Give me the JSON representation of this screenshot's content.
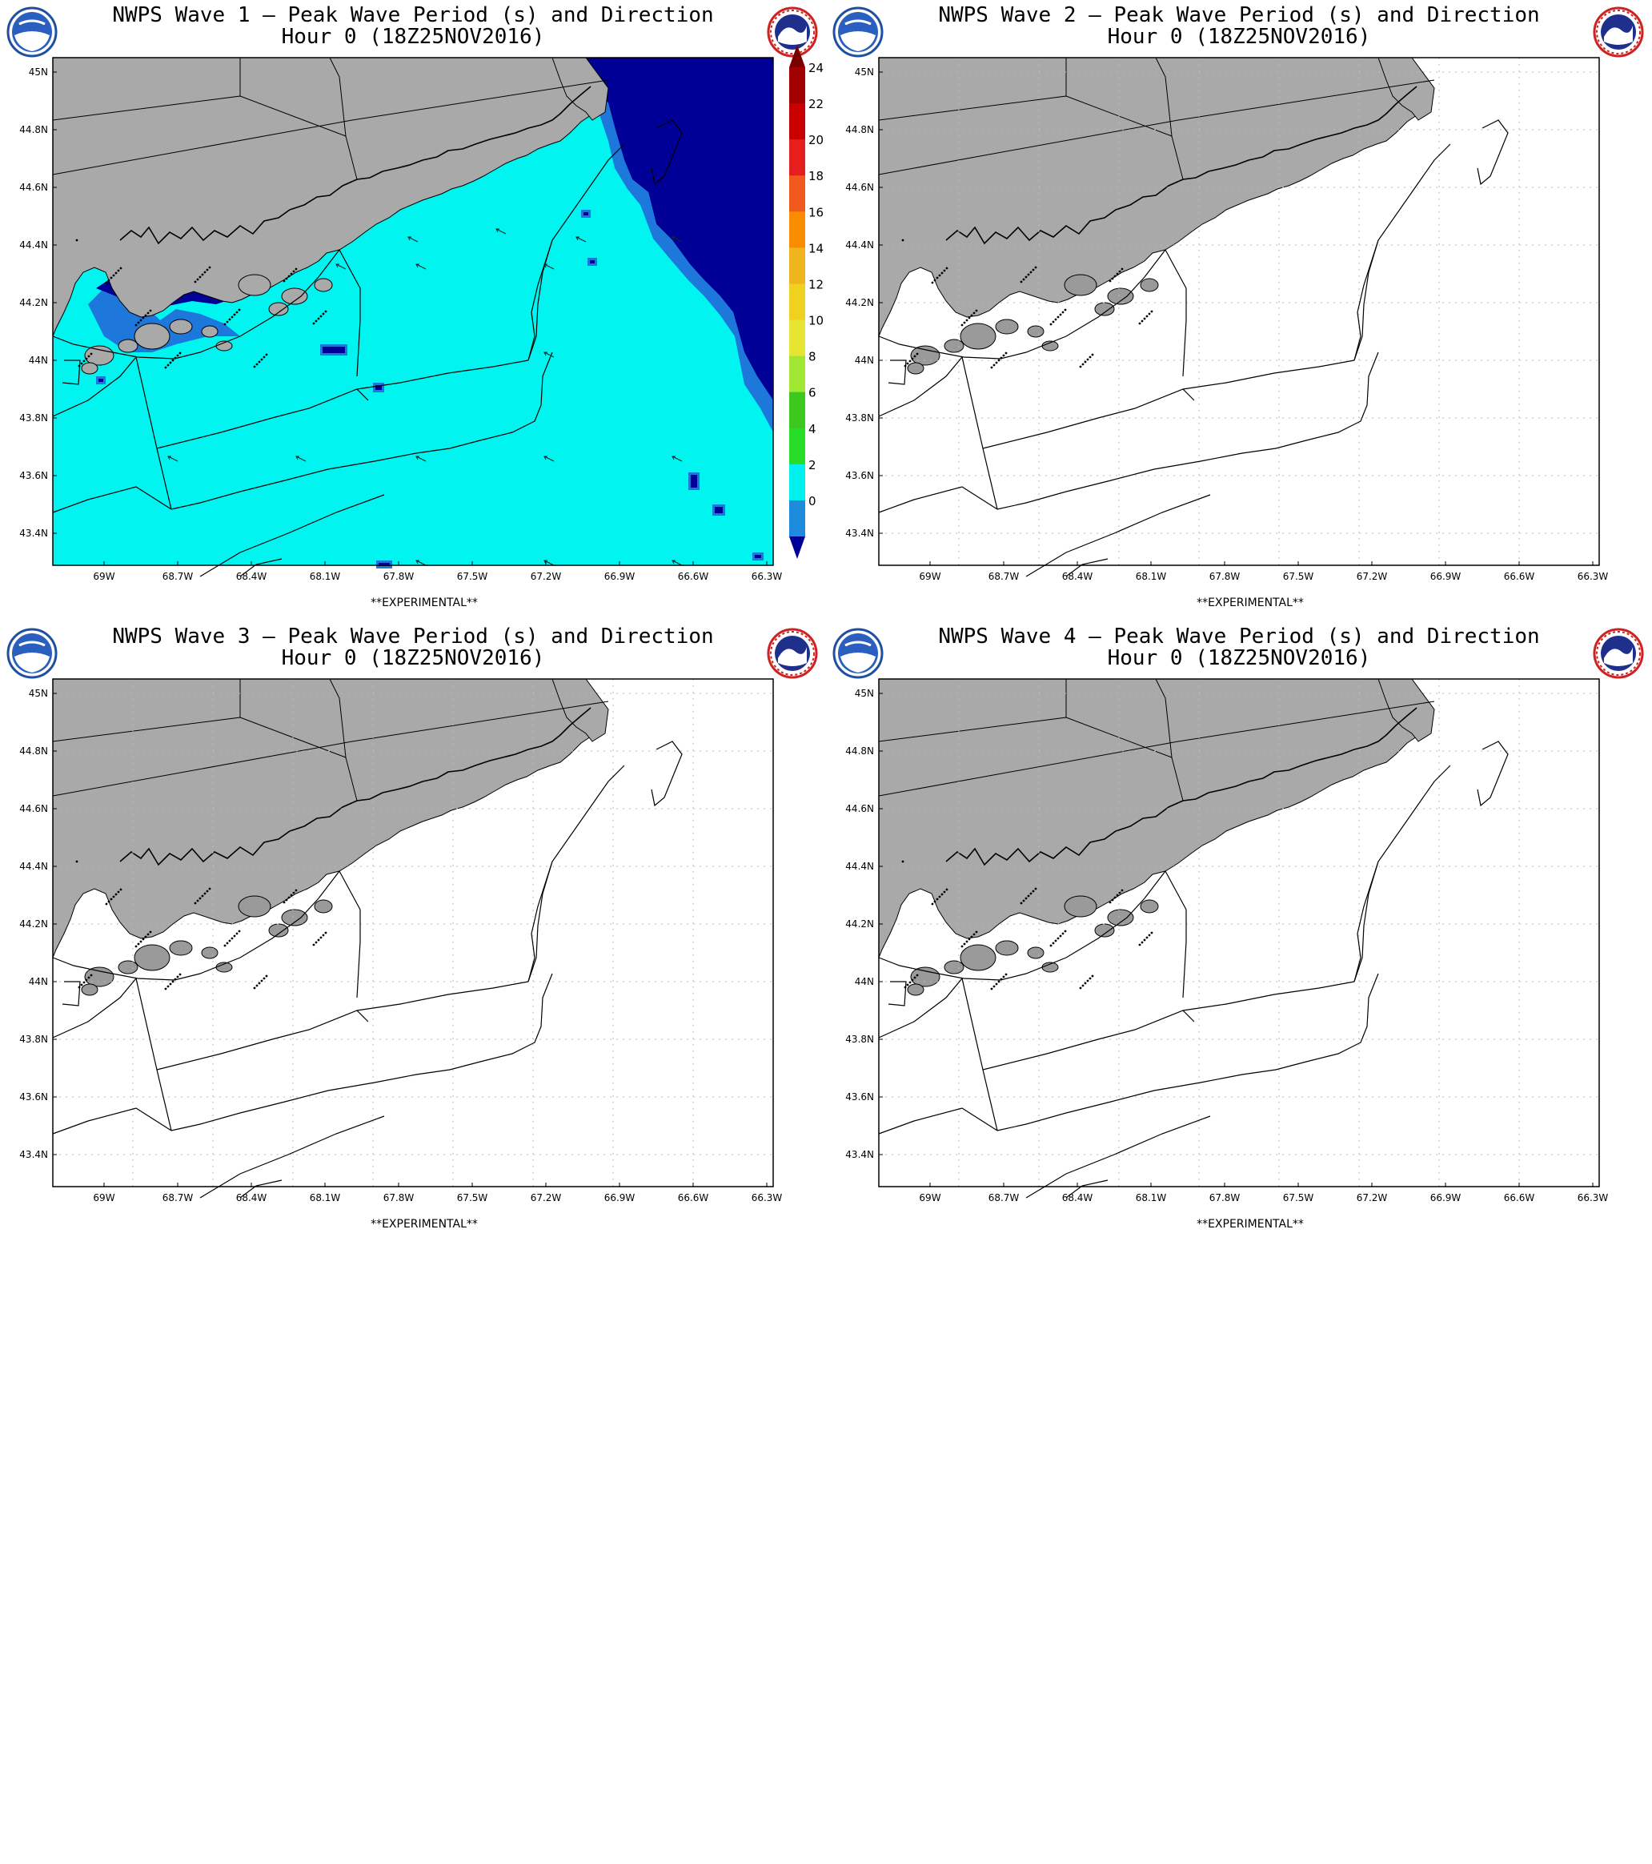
{
  "panels": [
    {
      "title_line1": "NWPS Wave 1 – Peak Wave Period (s) and Direction",
      "title_line2": "Hour 0 (18Z25NOV2016)",
      "experimental": "**EXPERIMENTAL**",
      "shaded": true
    },
    {
      "title_line1": "NWPS Wave 2 – Peak Wave Period (s) and Direction",
      "title_line2": "Hour 0 (18Z25NOV2016)",
      "experimental": "**EXPERIMENTAL**",
      "shaded": false
    },
    {
      "title_line1": "NWPS Wave 3 – Peak Wave Period (s) and Direction",
      "title_line2": "Hour 0 (18Z25NOV2016)",
      "experimental": "**EXPERIMENTAL**",
      "shaded": false
    },
    {
      "title_line1": "NWPS Wave 4 – Peak Wave Period (s) and Direction",
      "title_line2": "Hour 0 (18Z25NOV2016)",
      "experimental": "**EXPERIMENTAL**",
      "shaded": false
    }
  ],
  "lat_ticks": [
    "45N",
    "44.8N",
    "44.6N",
    "44.4N",
    "44.2N",
    "44N",
    "43.8N",
    "43.6N",
    "43.4N"
  ],
  "lon_ticks": [
    "69W",
    "68.7W",
    "68.4W",
    "68.1W",
    "67.8W",
    "67.5W",
    "67.2W",
    "66.9W",
    "66.6W",
    "66.3W"
  ],
  "colorbar": {
    "labels": [
      "24",
      "22",
      "20",
      "18",
      "16",
      "14",
      "12",
      "10",
      "8",
      "6",
      "4",
      "2",
      "0"
    ],
    "colors": [
      "#a00000",
      "#c80000",
      "#e61e1e",
      "#f05a1e",
      "#fa8c00",
      "#f0b41e",
      "#f0d21e",
      "#e6e632",
      "#a0e632",
      "#3cc81e",
      "#28dc28",
      "#00f0f0",
      "#1e8cdc"
    ]
  },
  "colors": {
    "land": "#a9a9a9",
    "sea_shade": "#00f5f0",
    "low_period": "#000096",
    "mid_blue": "#1e78dc"
  }
}
